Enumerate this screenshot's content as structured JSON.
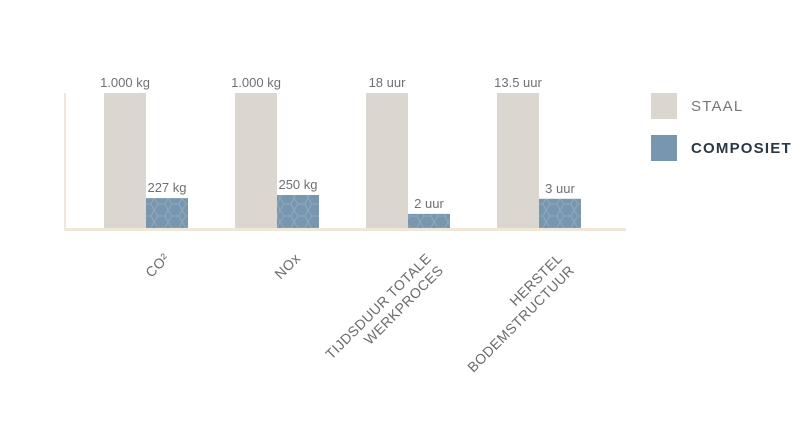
{
  "chart_data": {
    "type": "bar",
    "categories": [
      "CO²",
      "NOx",
      "TIJDSDUUR TOTALE\nWERKPROCES",
      "HERSTEL\nBODEMSTRUCTUUR"
    ],
    "series": [
      {
        "name": "STAAL",
        "color": "#dbd6cf",
        "values": [
          1000,
          1000,
          18,
          13.5
        ],
        "labels": [
          "1.000 kg",
          "1.000 kg",
          "18 uur",
          "13.5 uur"
        ]
      },
      {
        "name": "COMPOSIET",
        "color": "#7896ad",
        "values": [
          227,
          250,
          2,
          3
        ],
        "labels": [
          "227 kg",
          "250 kg",
          "2 uur",
          "3 uur"
        ]
      }
    ],
    "axis_color": "#efe8d8",
    "grid": false,
    "legend_position": "right"
  }
}
